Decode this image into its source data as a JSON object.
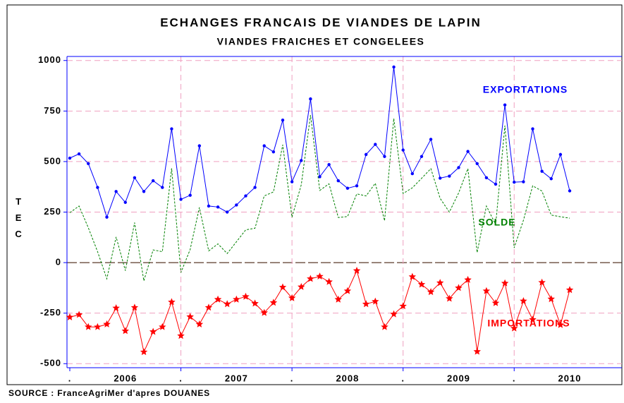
{
  "chart_data": {
    "type": "line",
    "title": "ECHANGES FRANCAIS DE VIANDES DE LAPIN",
    "subtitle": "VIANDES FRAICHES ET CONGELEES",
    "y_label": "TEC",
    "source": "SOURCE : FranceAgriMer d'apres DOUANES",
    "categories": [
      ".",
      null,
      null,
      null,
      null,
      null,
      "2006",
      null,
      null,
      null,
      null,
      null,
      ".",
      null,
      null,
      null,
      null,
      null,
      "2007",
      null,
      null,
      null,
      null,
      null,
      ".",
      null,
      null,
      null,
      null,
      null,
      "2008",
      null,
      null,
      null,
      null,
      null,
      ".",
      null,
      null,
      null,
      null,
      null,
      "2009",
      null,
      null,
      null,
      null,
      null,
      ".",
      null,
      null,
      null,
      null,
      null,
      "2010"
    ],
    "ylim": [
      -520,
      1020
    ],
    "yticks": [
      -500,
      -250,
      0,
      250,
      500,
      750,
      1000
    ],
    "grid": true,
    "series": [
      {
        "name": "EXPORTATIONS",
        "color": "#0000ff",
        "marker": "dot",
        "values": [
          517,
          538,
          490,
          372,
          225,
          352,
          298,
          420,
          352,
          405,
          372,
          662,
          313,
          333,
          578,
          280,
          275,
          250,
          285,
          330,
          372,
          578,
          548,
          705,
          400,
          505,
          810,
          425,
          485,
          405,
          368,
          380,
          535,
          585,
          525,
          968,
          557,
          440,
          525,
          610,
          418,
          428,
          470,
          550,
          490,
          420,
          388,
          780,
          398,
          400,
          662,
          452,
          415,
          535,
          355
        ]
      },
      {
        "name": "SOLDE",
        "color": "#008000",
        "marker": "none",
        "dash": true,
        "values": [
          247,
          280,
          172,
          54,
          -80,
          127,
          -40,
          198,
          -90,
          63,
          54,
          467,
          -49,
          65,
          273,
          58,
          93,
          45,
          103,
          162,
          170,
          330,
          350,
          583,
          225,
          385,
          730,
          357,
          390,
          223,
          228,
          340,
          330,
          393,
          207,
          713,
          342,
          370,
          417,
          465,
          318,
          250,
          345,
          465,
          50,
          280,
          188,
          678,
          73,
          210,
          380,
          354,
          235,
          227,
          220
        ]
      },
      {
        "name": "IMPORTATIONS",
        "color": "#ff0000",
        "marker": "star",
        "values": [
          -270,
          -258,
          -318,
          -318,
          -305,
          -225,
          -338,
          -222,
          -442,
          -342,
          -318,
          -195,
          -362,
          -268,
          -305,
          -222,
          -182,
          -205,
          -182,
          -168,
          -202,
          -248,
          -198,
          -122,
          -175,
          -120,
          -80,
          -68,
          -95,
          -182,
          -140,
          -40,
          -205,
          -192,
          -318,
          -255,
          -215,
          -70,
          -108,
          -145,
          -100,
          -178,
          -125,
          -85,
          -440,
          -140,
          -200,
          -102,
          -325,
          -190,
          -282,
          -98,
          -180,
          -308,
          -135
        ]
      }
    ]
  }
}
